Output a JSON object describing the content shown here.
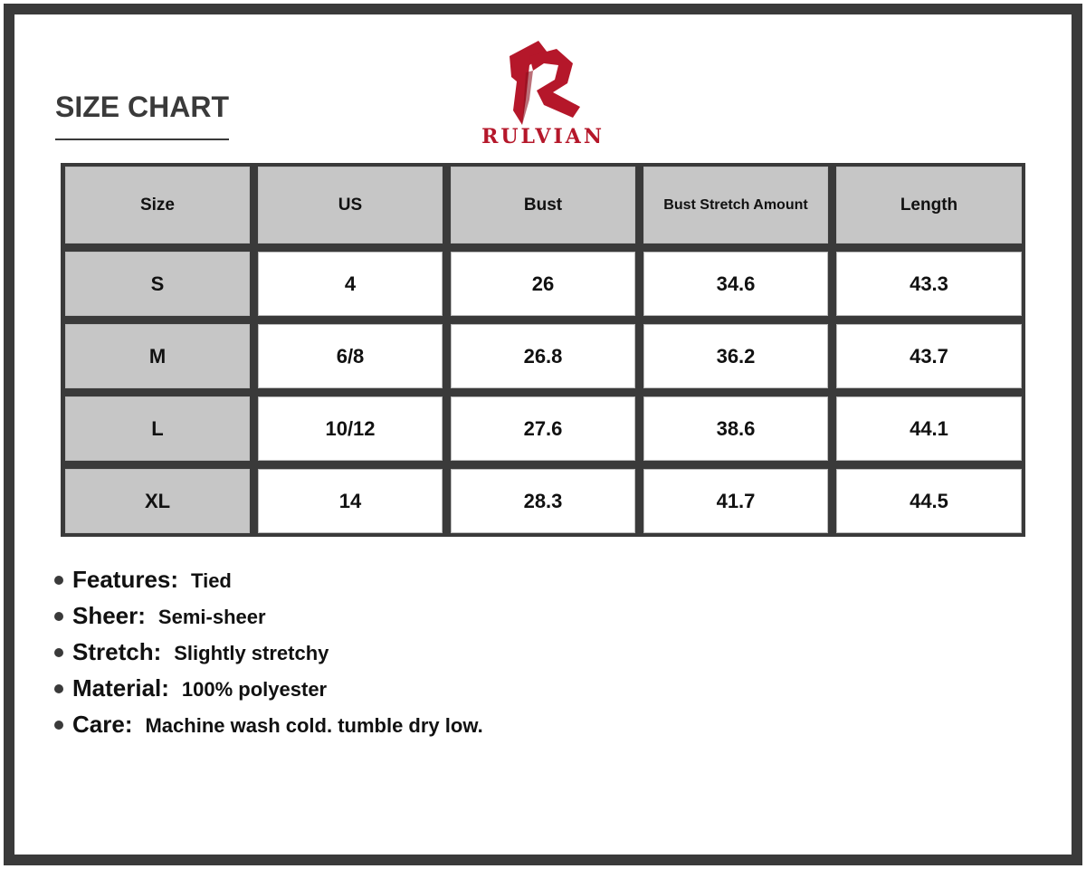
{
  "title": "SIZE CHART",
  "brand": {
    "name": "RULVIAN",
    "color": "#b5172a"
  },
  "table": {
    "headers": [
      "Size",
      "US",
      "Bust",
      "Bust Stretch Amount",
      "Length"
    ],
    "rows": [
      [
        "S",
        "4",
        "26",
        "34.6",
        "43.3"
      ],
      [
        "M",
        "6/8",
        "26.8",
        "36.2",
        "43.7"
      ],
      [
        "L",
        "10/12",
        "27.6",
        "38.6",
        "44.1"
      ],
      [
        "XL",
        "14",
        "28.3",
        "41.7",
        "44.5"
      ]
    ]
  },
  "features": [
    {
      "label": "Features:",
      "value": "Tied"
    },
    {
      "label": "Sheer:",
      "value": "Semi-sheer"
    },
    {
      "label": "Stretch:",
      "value": "Slightly stretchy"
    },
    {
      "label": "Material:",
      "value": "100% polyester"
    },
    {
      "label": "Care:",
      "value": "Machine wash cold. tumble dry low."
    }
  ]
}
